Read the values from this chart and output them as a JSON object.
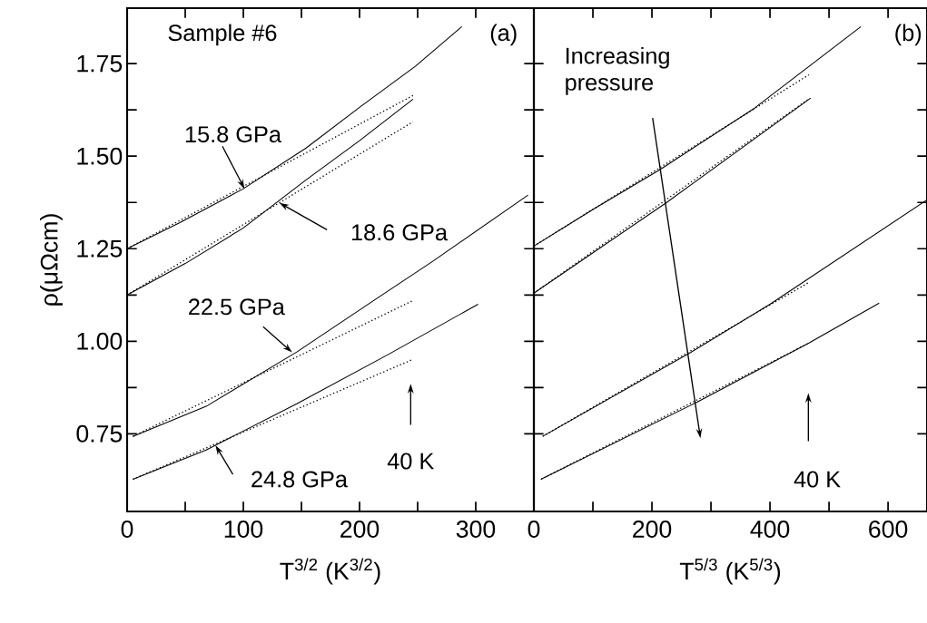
{
  "chart_data": [
    {
      "type": "line",
      "xlabel": "T$^{3/2}$ (K$^{3/2}$)",
      "ylabel": "ρ(μΩcm)",
      "marker": "none",
      "xlim": [
        0,
        350
      ],
      "xticks": [
        0,
        {
          "value": 50,
          "label": null
        },
        100,
        {
          "value": 150,
          "label": null
        },
        200,
        {
          "value": 250,
          "label": null
        },
        300,
        {
          "value": 350,
          "label": null
        }
      ],
      "ylim": [
        0.54,
        1.9
      ],
      "yticks": [
        0.75,
        {
          "value": 0.875,
          "label": null
        },
        "1.00",
        {
          "value": 1.125,
          "label": null
        },
        1.25,
        {
          "value": 1.375,
          "label": null
        },
        "1.50",
        {
          "value": 1.625,
          "label": null
        },
        1.75
      ],
      "annotations": [
        "Sample #6",
        "(a)",
        {
          "text": "15.8 GPa",
          "x": 101,
          "y": 1.412
        },
        {
          "text": "18.6 GPa",
          "x": 131,
          "y": 1.374
        },
        {
          "text": "22.5 GPa",
          "x": 142,
          "y": 0.97
        },
        {
          "text": "24.8 GPa",
          "x": 76,
          "y": 0.719
        },
        "40 K"
      ],
      "series": [
        {
          "color": "#000000",
          "line_style": "solid",
          "x": [
            0,
            45,
            100,
            154,
            200,
            248,
            288
          ],
          "values": [
            1.25,
            1.32,
            1.412,
            1.522,
            1.632,
            1.743,
            1.85
          ]
        },
        {
          "color": "#000000",
          "line_style": "dotted",
          "x": [
            0,
            246
          ],
          "values": [
            1.25,
            1.664
          ]
        },
        {
          "color": "#000000",
          "line_style": "solid",
          "x": [
            0,
            50,
            100,
            154,
            200,
            246
          ],
          "values": [
            1.125,
            1.21,
            1.306,
            1.436,
            1.542,
            1.654
          ]
        },
        {
          "color": "#000000",
          "line_style": "dotted",
          "x": [
            0,
            246
          ],
          "values": [
            1.125,
            1.593
          ]
        },
        {
          "color": "#000000",
          "line_style": "solid",
          "x": [
            5,
            68,
            146,
            216,
            263,
            345
          ],
          "values": [
            0.743,
            0.824,
            0.971,
            1.118,
            1.216,
            1.395
          ]
        },
        {
          "color": "#000000",
          "line_style": "dotted",
          "x": [
            5,
            246
          ],
          "values": [
            0.743,
            1.11
          ]
        },
        {
          "color": "#000000",
          "line_style": "solid",
          "x": [
            5,
            68,
            146,
            224,
            302
          ],
          "values": [
            0.627,
            0.706,
            0.831,
            0.963,
            1.1
          ]
        },
        {
          "color": "#000000",
          "line_style": "dotted",
          "x": [
            5,
            246
          ],
          "values": [
            0.627,
            0.951
          ]
        }
      ]
    },
    {
      "type": "line",
      "xlabel": "T$^{5/3}$ (K$^{5/3}$)",
      "marker": "none",
      "tick_labels": "x",
      "xlim": [
        0,
        666
      ],
      "xticks": [
        0,
        {
          "value": 100,
          "label": null
        },
        200,
        {
          "value": 300,
          "label": null
        },
        400,
        {
          "value": 500,
          "label": null
        },
        600
      ],
      "ylim": [
        0.54,
        1.9
      ],
      "yticks": [
        0.75,
        0.875,
        1,
        1.125,
        1.25,
        1.375,
        1.5,
        1.625,
        1.75
      ],
      "annotations": [
        "(b)",
        "Increasing pressure",
        "40 K"
      ],
      "series": [
        {
          "color": "#000000",
          "line_style": "solid",
          "x": [
            0,
            100,
            215,
            374,
            554
          ],
          "values": [
            1.257,
            1.356,
            1.465,
            1.63,
            1.85
          ]
        },
        {
          "color": "#000000",
          "line_style": "dotted",
          "x": [
            0,
            466
          ],
          "values": [
            1.257,
            1.72
          ]
        },
        {
          "color": "#000000",
          "line_style": "solid",
          "x": [
            0,
            225,
            469
          ],
          "values": [
            1.13,
            1.375,
            1.657
          ]
        },
        {
          "color": "#000000",
          "line_style": "dotted",
          "x": [
            0,
            466
          ],
          "values": [
            1.13,
            1.655
          ]
        },
        {
          "color": "#000000",
          "line_style": "solid",
          "x": [
            15,
            266,
            400,
            666
          ],
          "values": [
            0.743,
            0.97,
            1.1,
            1.382
          ]
        },
        {
          "color": "#000000",
          "line_style": "dotted",
          "x": [
            15,
            466
          ],
          "values": [
            0.743,
            1.159
          ]
        },
        {
          "color": "#000000",
          "line_style": "solid",
          "x": [
            12,
            277,
            466,
            585
          ],
          "values": [
            0.627,
            0.836,
            0.995,
            1.103
          ]
        },
        {
          "color": "#000000",
          "line_style": "dotted",
          "x": [
            12,
            466
          ],
          "values": [
            0.627,
            0.995
          ]
        }
      ]
    }
  ]
}
